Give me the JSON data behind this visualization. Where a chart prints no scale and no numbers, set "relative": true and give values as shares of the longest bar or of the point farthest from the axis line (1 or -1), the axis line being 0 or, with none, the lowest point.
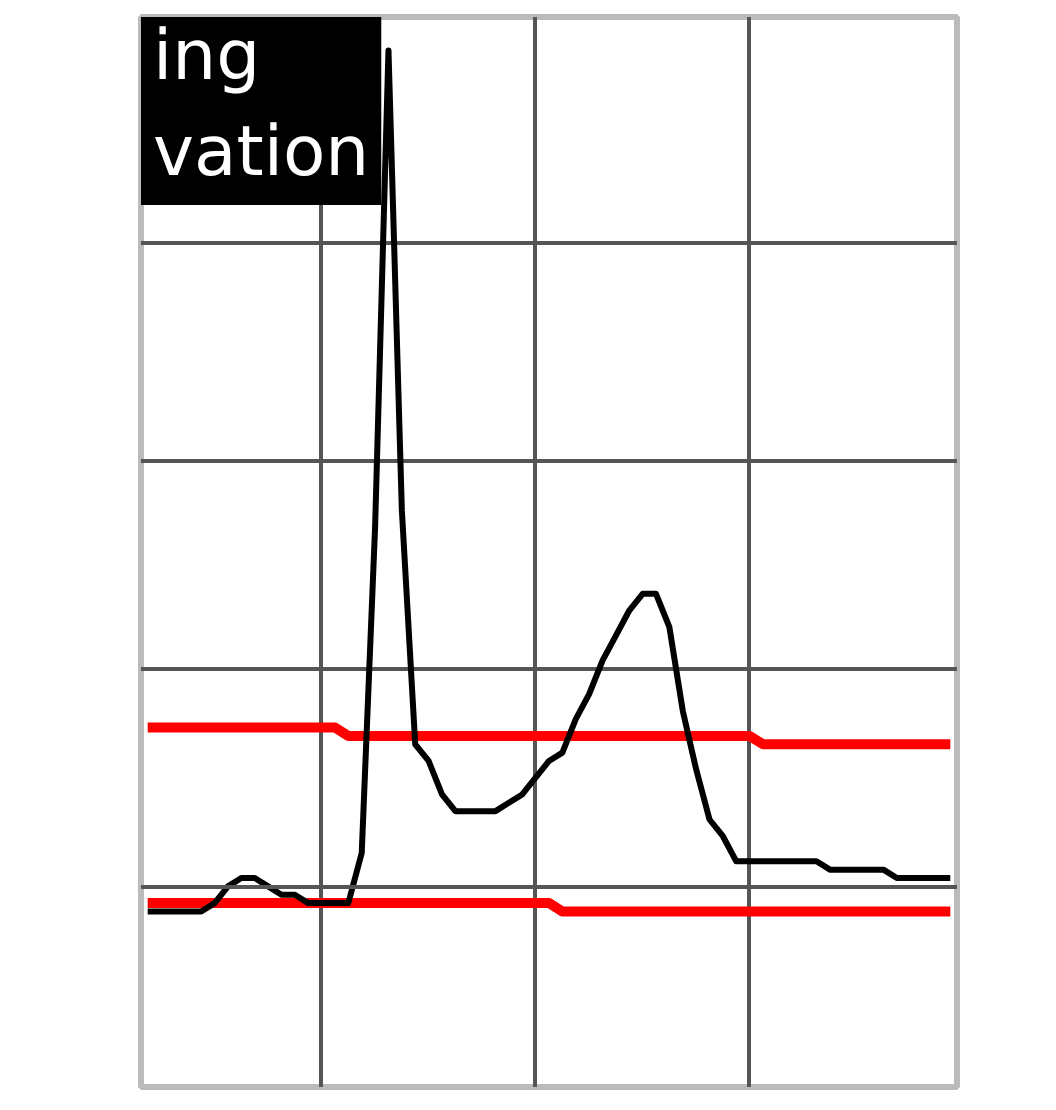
{
  "chart_data": {
    "type": "line",
    "title": "ing\nvation",
    "relative": true,
    "grid": true,
    "categories": [
      null,
      null,
      null,
      null,
      null,
      null,
      null,
      null,
      null,
      null,
      null,
      null,
      null,
      null,
      null,
      null,
      null,
      null,
      null,
      null,
      null,
      null,
      null,
      null,
      null,
      null,
      null,
      null,
      null,
      null,
      null,
      null,
      null,
      null,
      null,
      null,
      null,
      null,
      null,
      null,
      null,
      null,
      null,
      null,
      null,
      null,
      null,
      null,
      null,
      null,
      null,
      null,
      null,
      null,
      null,
      null,
      null,
      null,
      null,
      null,
      null
    ],
    "series": [
      {
        "color": "#000000",
        "values": [
          -0.03,
          -0.03,
          -0.03,
          -0.03,
          -0.03,
          -0.02,
          0.0,
          0.01,
          0.01,
          0.0,
          -0.01,
          -0.01,
          -0.02,
          -0.02,
          -0.02,
          -0.02,
          0.04,
          0.43,
          1.0,
          0.45,
          0.17,
          0.15,
          0.11,
          0.09,
          0.09,
          0.09,
          0.09,
          0.1,
          0.11,
          0.13,
          0.15,
          0.16,
          0.2,
          0.23,
          0.27,
          0.3,
          0.33,
          0.35,
          0.35,
          0.31,
          0.21,
          0.14,
          0.08,
          0.06,
          0.03,
          0.03,
          0.03,
          0.03,
          0.03,
          0.03,
          0.03,
          0.02,
          0.02,
          0.02,
          0.02,
          0.02,
          0.01,
          0.01,
          0.01,
          0.01,
          0.01
        ]
      },
      {
        "color": "#ff0000",
        "values": [
          0.19,
          0.19,
          0.19,
          0.19,
          0.19,
          0.19,
          0.19,
          0.19,
          0.19,
          0.19,
          0.19,
          0.19,
          0.19,
          0.19,
          0.19,
          0.18,
          0.18,
          0.18,
          0.18,
          0.18,
          0.18,
          0.18,
          0.18,
          0.18,
          0.18,
          0.18,
          0.18,
          0.18,
          0.18,
          0.18,
          0.18,
          0.18,
          0.18,
          0.18,
          0.18,
          0.18,
          0.18,
          0.18,
          0.18,
          0.18,
          0.18,
          0.18,
          0.18,
          0.18,
          0.18,
          0.18,
          0.17,
          0.17,
          0.17,
          0.17,
          0.17,
          0.17,
          0.17,
          0.17,
          0.17,
          0.17,
          0.17,
          0.17,
          0.17,
          0.17,
          0.17
        ]
      },
      {
        "color": "#ff0000",
        "values": [
          -0.02,
          -0.02,
          -0.02,
          -0.02,
          -0.02,
          -0.02,
          -0.02,
          -0.02,
          -0.02,
          -0.02,
          -0.02,
          -0.02,
          -0.02,
          -0.02,
          -0.02,
          -0.02,
          -0.02,
          -0.02,
          -0.02,
          -0.02,
          -0.02,
          -0.02,
          -0.02,
          -0.02,
          -0.02,
          -0.02,
          -0.02,
          -0.02,
          -0.02,
          -0.02,
          -0.02,
          -0.03,
          -0.03,
          -0.03,
          -0.03,
          -0.03,
          -0.03,
          -0.03,
          -0.03,
          -0.03,
          -0.03,
          -0.03,
          -0.03,
          -0.03,
          -0.03,
          -0.03,
          -0.03,
          -0.03,
          -0.03,
          -0.03,
          -0.03,
          -0.03,
          -0.03,
          -0.03,
          -0.03,
          -0.03,
          -0.03,
          -0.03,
          -0.03,
          -0.03,
          -0.03
        ]
      }
    ]
  }
}
